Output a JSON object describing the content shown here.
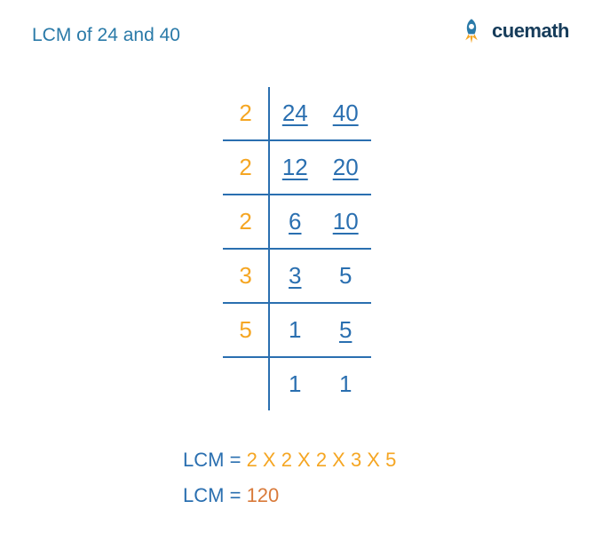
{
  "title": "LCM of 24 and 40",
  "logo": {
    "text": "cuemath"
  },
  "colors": {
    "title": "#2a7aa8",
    "divisor": "#f5a623",
    "number": "#2a6fb0",
    "border": "#2a6fb0",
    "lcm_label": "#2a6fb0",
    "lcm_expression": "#f5a623",
    "lcm_value": "#d97a3a",
    "background": "#ffffff",
    "logo_text": "#163c5a"
  },
  "typography": {
    "title_fontsize": 21,
    "cell_fontsize": 26,
    "result_fontsize": 22,
    "font_weight": 500
  },
  "division_table": {
    "type": "division-ladder",
    "columns": [
      "divisor",
      "n1",
      "n2"
    ],
    "rows": [
      {
        "divisor": "2",
        "n1": "24",
        "n2": "40",
        "n1_underline": true,
        "n2_underline": true,
        "bottom_border": true
      },
      {
        "divisor": "2",
        "n1": "12",
        "n2": "20",
        "n1_underline": true,
        "n2_underline": true,
        "bottom_border": true
      },
      {
        "divisor": "2",
        "n1": "6",
        "n2": "10",
        "n1_underline": true,
        "n2_underline": true,
        "bottom_border": true
      },
      {
        "divisor": "3",
        "n1": "3",
        "n2": "5",
        "n1_underline": true,
        "n2_underline": false,
        "bottom_border": true
      },
      {
        "divisor": "5",
        "n1": "1",
        "n2": "5",
        "n1_underline": false,
        "n2_underline": true,
        "bottom_border": true
      },
      {
        "divisor": "",
        "n1": "1",
        "n2": "1",
        "n1_underline": false,
        "n2_underline": false,
        "bottom_border": false
      }
    ]
  },
  "result": {
    "label": "LCM",
    "equals": "=",
    "expression": "2 X 2 X 2 X 3 X 5",
    "value": "120"
  }
}
